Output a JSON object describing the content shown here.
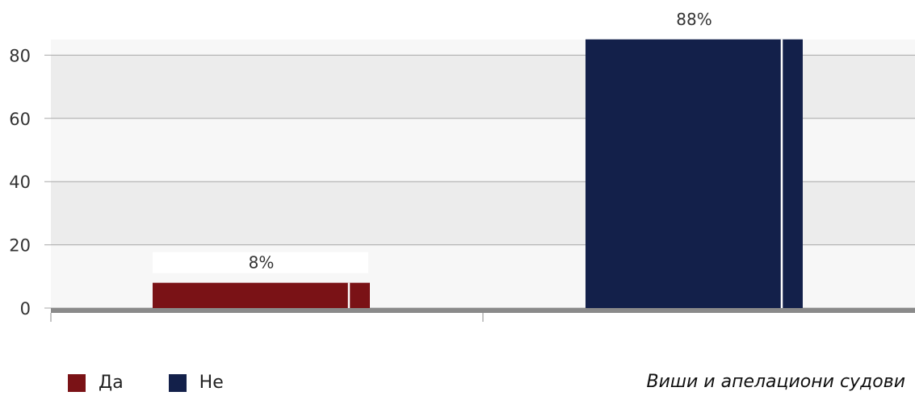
{
  "chart_data": {
    "type": "bar",
    "categories": [
      "Да",
      "Не"
    ],
    "values": [
      8,
      88
    ],
    "data_labels": [
      "8%",
      "88%"
    ],
    "colors": [
      "#7a1216",
      "#13204a"
    ],
    "yticks": [
      0,
      20,
      40,
      60,
      80
    ],
    "ylim": [
      0,
      85
    ],
    "grid": true,
    "legend_position": "bottom-left"
  },
  "legend": {
    "items": [
      {
        "label": "Да",
        "color": "#7a1216"
      },
      {
        "label": "Не",
        "color": "#13204a"
      }
    ]
  },
  "footer": {
    "note": "Виши и апелациони судови"
  }
}
